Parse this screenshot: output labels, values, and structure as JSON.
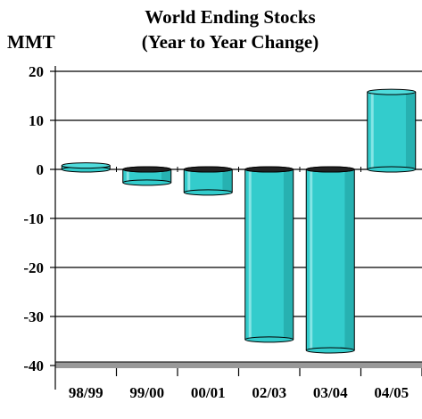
{
  "chart_data": {
    "type": "bar",
    "title": "World Ending Stocks",
    "subtitle": "(Year to Year Change)",
    "ylabel": "MMT",
    "xlabel": "",
    "categories": [
      "98/99",
      "99/00",
      "00/01",
      "02/03",
      "03/04",
      "04/05"
    ],
    "values": [
      0.8,
      -2.7,
      -4.7,
      -34.7,
      -36.9,
      15.8
    ],
    "ylim": [
      -40,
      20
    ],
    "yticks": [
      20,
      10,
      0,
      -10,
      -20,
      -30,
      -40
    ],
    "grid": true,
    "legend": "none",
    "colors": {
      "bar_face": "#33CCCC",
      "bar_top": "#4FDCDC",
      "bar_shadow": "#1E9A9A",
      "bar_highlight": "#A6F0F0",
      "floor": "#999999"
    }
  }
}
